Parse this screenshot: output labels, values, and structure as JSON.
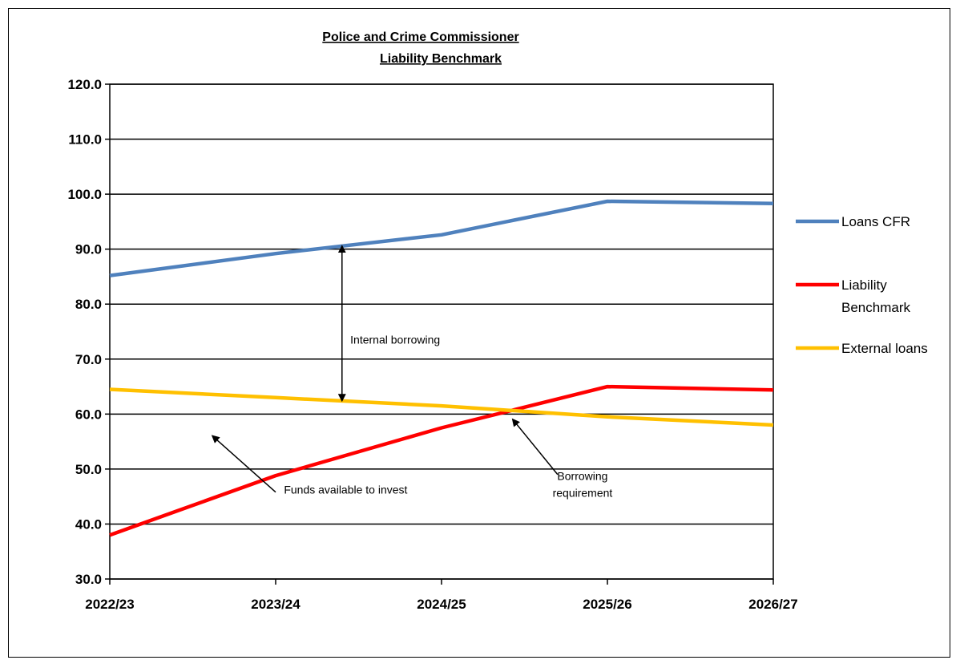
{
  "chart_data": {
    "type": "line",
    "title": "Police and Crime Commissioner",
    "subtitle": "Liability Benchmark",
    "categories": [
      "2022/23",
      "2023/24",
      "2024/25",
      "2025/26",
      "2026/27"
    ],
    "ylim": [
      30,
      120
    ],
    "yticks": [
      "30.0",
      "40.0",
      "50.0",
      "60.0",
      "70.0",
      "80.0",
      "90.0",
      "100.0",
      "110.0",
      "120.0"
    ],
    "grid": true,
    "legend_position": "right",
    "series": [
      {
        "name": "Loans CFR",
        "color": "#4F81BD",
        "values": [
          85.2,
          89.2,
          92.6,
          98.7,
          98.3
        ]
      },
      {
        "name": "Liability Benchmark",
        "legend_lines": [
          "Liability",
          "Benchmark"
        ],
        "color": "#FF0000",
        "values": [
          38.0,
          48.8,
          57.5,
          65.0,
          64.4
        ]
      },
      {
        "name": "External loans",
        "color": "#FFC000",
        "values": [
          64.5,
          63.0,
          61.5,
          59.5,
          58.0
        ]
      }
    ],
    "annotations": {
      "internal_borrowing": {
        "text": "Internal borrowing",
        "x": 1.45,
        "y": 72.8,
        "arrow_x": 1.4,
        "arrow_from": 62.5,
        "arrow_to": 90.5
      },
      "funds_available": {
        "text": "Funds available to invest",
        "x": 1.05,
        "y": 45.5,
        "arrow_from": [
          1.0,
          45.8
        ],
        "arrow_to": [
          0.62,
          56.0
        ]
      },
      "borrowing_requirement": {
        "lines": [
          "Borrowing",
          "requirement"
        ],
        "x": 2.85,
        "y": 48.0,
        "arrow_from": [
          2.7,
          49.0
        ],
        "arrow_to": [
          2.43,
          59.0
        ]
      }
    }
  }
}
